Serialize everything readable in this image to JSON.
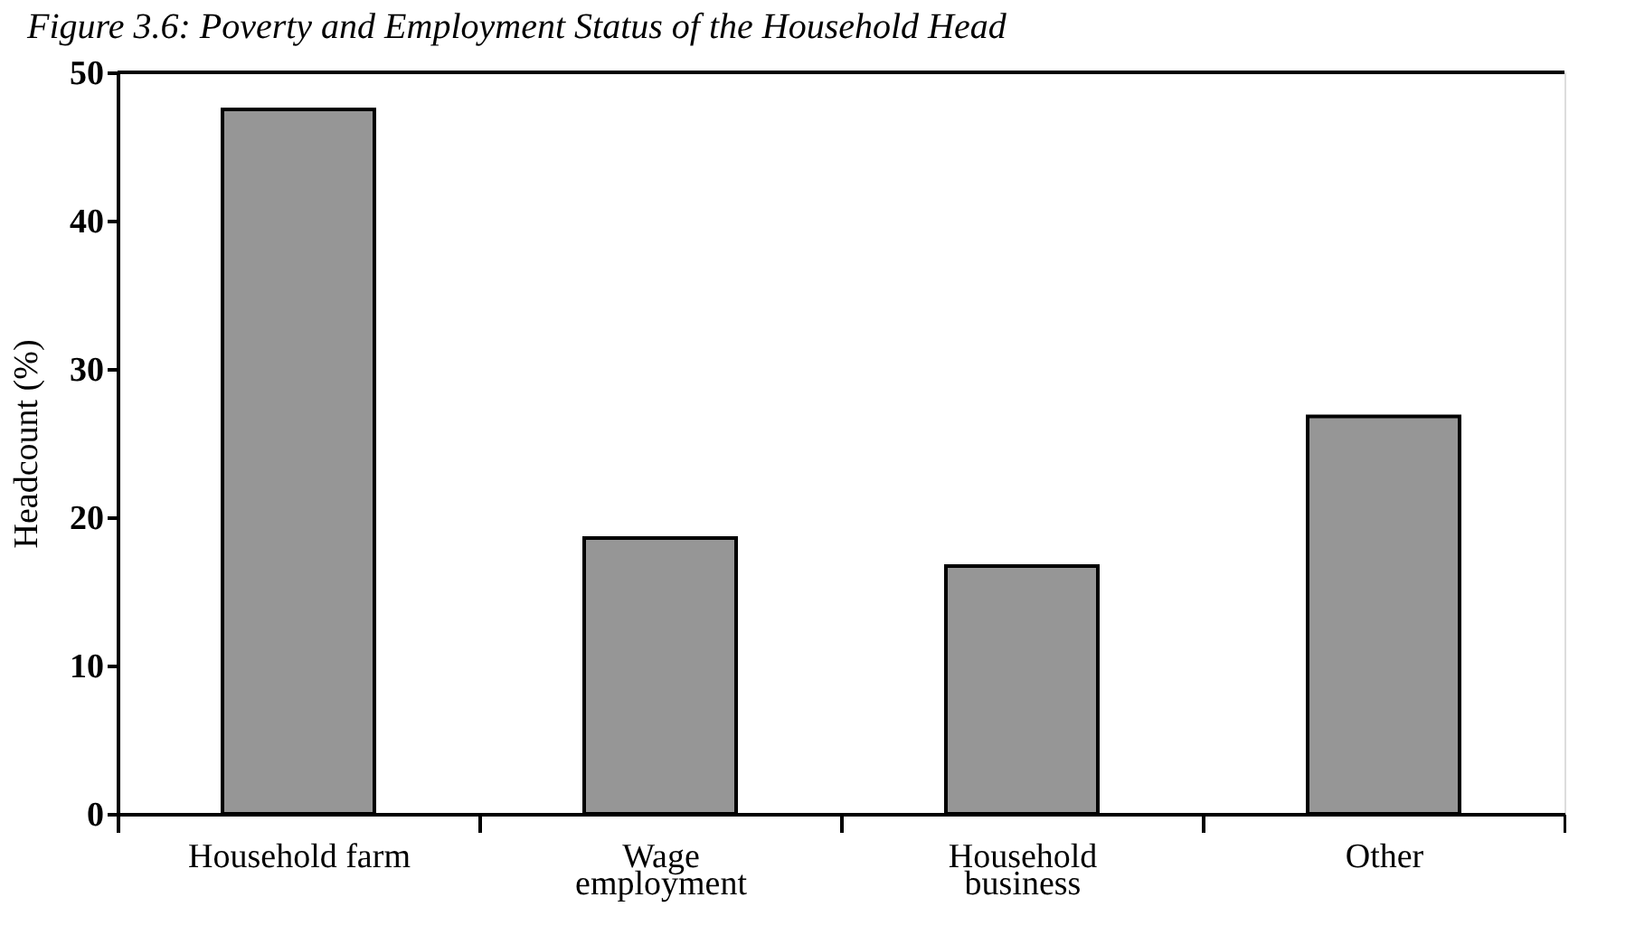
{
  "chart_data": {
    "type": "bar",
    "title": "Figure 3.6: Poverty and Employment Status of the Household Head",
    "ylabel": "Headcount (%)",
    "categories": [
      "Household farm",
      "Wage\nemployment",
      "Household\nbusiness",
      "Other"
    ],
    "values": [
      47.5,
      18.6,
      16.7,
      26.8
    ],
    "color": "#969696",
    "ylim": [
      0,
      50
    ],
    "yticks": [
      0,
      10,
      20,
      30,
      40,
      50
    ],
    "grid": false
  }
}
